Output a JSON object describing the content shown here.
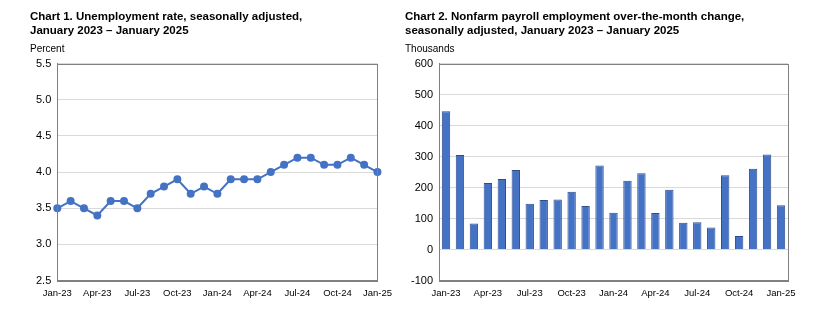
{
  "chart_data": [
    {
      "type": "line",
      "title": [
        "Chart 1. Unemployment rate, seasonally adjusted,",
        "January 2023 – January 2025"
      ],
      "y_label": "Percent",
      "categories": [
        "Jan-23",
        null,
        null,
        "Apr-23",
        null,
        null,
        "Jul-23",
        null,
        null,
        "Oct-23",
        null,
        null,
        "Jan-24",
        null,
        null,
        "Apr-24",
        null,
        null,
        "Jul-24",
        null,
        null,
        "Oct-24",
        null,
        null,
        "Jan-25"
      ],
      "values": [
        3.5,
        3.6,
        3.5,
        3.4,
        3.6,
        3.6,
        3.5,
        3.7,
        3.8,
        3.9,
        3.7,
        3.8,
        3.7,
        3.9,
        3.9,
        3.9,
        4.0,
        4.1,
        4.2,
        4.2,
        4.1,
        4.1,
        4.2,
        4.1,
        4.0
      ],
      "color": "#4472c4",
      "marker": "circle",
      "ylim": [
        2.5,
        5.5
      ],
      "yticks": [
        2.5,
        {
          "value": 3,
          "label": "3.0"
        },
        3.5,
        {
          "value": 4,
          "label": "4.0"
        },
        4.5,
        {
          "value": 5,
          "label": "5.0"
        },
        5.5
      ],
      "grid": true
    },
    {
      "type": "bar",
      "title": [
        "Chart 2. Nonfarm payroll employment over-the-month change,",
        "seasonally adjusted, January 2023 – January 2025"
      ],
      "y_label": "Thousands",
      "categories": [
        "Jan-23",
        null,
        null,
        "Apr-23",
        null,
        null,
        "Jul-23",
        null,
        null,
        "Oct-23",
        null,
        null,
        "Jan-24",
        null,
        null,
        "Apr-24",
        null,
        null,
        "Jul-24",
        null,
        null,
        "Oct-24",
        null,
        null,
        "Jan-25"
      ],
      "values": [
        446,
        305,
        84,
        215,
        228,
        257,
        148,
        160,
        162,
        187,
        141,
        271,
        119,
        222,
        246,
        118,
        193,
        87,
        88,
        71,
        240,
        44,
        261,
        307,
        143
      ],
      "color": "#4472c4",
      "ylim": [
        -100,
        600
      ],
      "yticks": [
        -100,
        0,
        100,
        200,
        300,
        400,
        500,
        600
      ],
      "grid": true
    }
  ]
}
